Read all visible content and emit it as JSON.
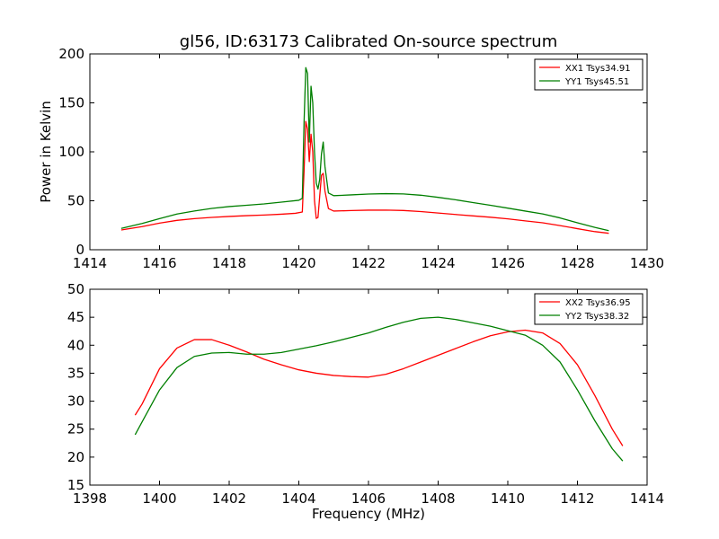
{
  "figure": {
    "title": "gl56, ID:63173 Calibrated On-source spectrum",
    "colors": {
      "xx": "#ff0000",
      "yy": "#007f00"
    }
  },
  "chart_data": [
    {
      "type": "line",
      "title": "gl56, ID:63173 Calibrated On-source spectrum",
      "xlabel": "",
      "ylabel": "Power in Kelvin",
      "xlim": [
        1414,
        1430
      ],
      "ylim": [
        0,
        200
      ],
      "xticks": [
        1414,
        1416,
        1418,
        1420,
        1422,
        1424,
        1426,
        1428,
        1430
      ],
      "yticks": [
        0,
        50,
        100,
        150,
        200
      ],
      "legend_position": "top-right",
      "grid": false,
      "series": [
        {
          "name": "XX1 Tsys34.91",
          "color": "#ff0000",
          "points": [
            [
              1414.9,
              20.2
            ],
            [
              1415.5,
              23.6
            ],
            [
              1416.0,
              27.2
            ],
            [
              1416.5,
              30.0
            ],
            [
              1417.0,
              31.8
            ],
            [
              1417.5,
              33.0
            ],
            [
              1418.0,
              34.0
            ],
            [
              1418.5,
              34.8
            ],
            [
              1419.0,
              35.4
            ],
            [
              1419.5,
              36.3
            ],
            [
              1419.9,
              37.2
            ],
            [
              1420.1,
              38.5
            ],
            [
              1420.15,
              80
            ],
            [
              1420.2,
              131
            ],
            [
              1420.25,
              123
            ],
            [
              1420.3,
              90
            ],
            [
              1420.35,
              118
            ],
            [
              1420.4,
              100
            ],
            [
              1420.45,
              50
            ],
            [
              1420.5,
              32
            ],
            [
              1420.55,
              33
            ],
            [
              1420.6,
              55
            ],
            [
              1420.65,
              76
            ],
            [
              1420.7,
              78
            ],
            [
              1420.75,
              60
            ],
            [
              1420.85,
              42
            ],
            [
              1421.0,
              39.5
            ],
            [
              1421.5,
              40.0
            ],
            [
              1422.0,
              40.4
            ],
            [
              1422.5,
              40.5
            ],
            [
              1423.0,
              40.1
            ],
            [
              1423.5,
              39.0
            ],
            [
              1424.0,
              37.5
            ],
            [
              1424.5,
              36.0
            ],
            [
              1425.0,
              34.6
            ],
            [
              1425.5,
              33.2
            ],
            [
              1426.0,
              31.5
            ],
            [
              1426.5,
              29.5
            ],
            [
              1427.0,
              27.5
            ],
            [
              1427.5,
              24.7
            ],
            [
              1428.0,
              21.5
            ],
            [
              1428.5,
              18.5
            ],
            [
              1428.9,
              16.8
            ]
          ]
        },
        {
          "name": "YY1 Tsys45.51",
          "color": "#007f00",
          "points": [
            [
              1414.9,
              21.8
            ],
            [
              1415.5,
              26.8
            ],
            [
              1416.0,
              31.8
            ],
            [
              1416.5,
              36.5
            ],
            [
              1417.0,
              39.6
            ],
            [
              1417.5,
              42.2
            ],
            [
              1418.0,
              44.1
            ],
            [
              1418.5,
              45.4
            ],
            [
              1419.0,
              46.8
            ],
            [
              1419.5,
              48.6
            ],
            [
              1420.0,
              50.5
            ],
            [
              1420.1,
              52.5
            ],
            [
              1420.15,
              130
            ],
            [
              1420.2,
              186
            ],
            [
              1420.25,
              180
            ],
            [
              1420.3,
              110
            ],
            [
              1420.35,
              167
            ],
            [
              1420.4,
              150
            ],
            [
              1420.45,
              100
            ],
            [
              1420.5,
              68
            ],
            [
              1420.55,
              62
            ],
            [
              1420.6,
              72
            ],
            [
              1420.65,
              98
            ],
            [
              1420.7,
              110
            ],
            [
              1420.75,
              85
            ],
            [
              1420.85,
              58
            ],
            [
              1421.0,
              55.2
            ],
            [
              1421.5,
              56.0
            ],
            [
              1422.0,
              56.9
            ],
            [
              1422.5,
              57.3
            ],
            [
              1423.0,
              57.0
            ],
            [
              1423.5,
              55.7
            ],
            [
              1424.0,
              53.5
            ],
            [
              1424.5,
              51.0
            ],
            [
              1425.0,
              48.2
            ],
            [
              1425.5,
              45.4
            ],
            [
              1426.0,
              42.5
            ],
            [
              1426.5,
              39.5
            ],
            [
              1427.0,
              36.6
            ],
            [
              1427.5,
              32.5
            ],
            [
              1428.0,
              27.5
            ],
            [
              1428.5,
              22.8
            ],
            [
              1428.9,
              19.5
            ]
          ]
        }
      ]
    },
    {
      "type": "line",
      "title": "",
      "xlabel": "Frequency (MHz)",
      "ylabel": "",
      "xlim": [
        1398,
        1414
      ],
      "ylim": [
        15,
        50
      ],
      "xticks": [
        1398,
        1400,
        1402,
        1404,
        1406,
        1408,
        1410,
        1412,
        1414
      ],
      "yticks": [
        15,
        20,
        25,
        30,
        35,
        40,
        45,
        50
      ],
      "legend_position": "top-right",
      "grid": false,
      "series": [
        {
          "name": "XX2 Tsys36.95",
          "color": "#ff0000",
          "points": [
            [
              1399.3,
              27.5
            ],
            [
              1399.5,
              29.5
            ],
            [
              1400.0,
              35.8
            ],
            [
              1400.5,
              39.5
            ],
            [
              1401.0,
              41.0
            ],
            [
              1401.5,
              41.0
            ],
            [
              1402.0,
              40.0
            ],
            [
              1402.5,
              38.8
            ],
            [
              1403.0,
              37.5
            ],
            [
              1403.5,
              36.5
            ],
            [
              1404.0,
              35.6
            ],
            [
              1404.5,
              35.0
            ],
            [
              1405.0,
              34.6
            ],
            [
              1405.5,
              34.4
            ],
            [
              1406.0,
              34.3
            ],
            [
              1406.5,
              34.8
            ],
            [
              1407.0,
              35.8
            ],
            [
              1407.5,
              37.0
            ],
            [
              1408.0,
              38.2
            ],
            [
              1408.5,
              39.4
            ],
            [
              1409.0,
              40.6
            ],
            [
              1409.5,
              41.7
            ],
            [
              1410.0,
              42.4
            ],
            [
              1410.5,
              42.7
            ],
            [
              1411.0,
              42.2
            ],
            [
              1411.5,
              40.3
            ],
            [
              1412.0,
              36.5
            ],
            [
              1412.5,
              31.0
            ],
            [
              1413.0,
              25.0
            ],
            [
              1413.3,
              22.0
            ]
          ]
        },
        {
          "name": "YY2 Tsys38.32",
          "color": "#007f00",
          "points": [
            [
              1399.3,
              24.0
            ],
            [
              1399.5,
              26.3
            ],
            [
              1400.0,
              32.0
            ],
            [
              1400.5,
              36.0
            ],
            [
              1401.0,
              38.0
            ],
            [
              1401.5,
              38.6
            ],
            [
              1402.0,
              38.7
            ],
            [
              1402.5,
              38.4
            ],
            [
              1403.0,
              38.4
            ],
            [
              1403.5,
              38.7
            ],
            [
              1404.0,
              39.3
            ],
            [
              1404.5,
              39.9
            ],
            [
              1405.0,
              40.6
            ],
            [
              1405.5,
              41.4
            ],
            [
              1406.0,
              42.2
            ],
            [
              1406.5,
              43.2
            ],
            [
              1407.0,
              44.1
            ],
            [
              1407.5,
              44.8
            ],
            [
              1408.0,
              45.0
            ],
            [
              1408.5,
              44.6
            ],
            [
              1409.0,
              44.0
            ],
            [
              1409.5,
              43.4
            ],
            [
              1410.0,
              42.6
            ],
            [
              1410.5,
              41.8
            ],
            [
              1411.0,
              40.0
            ],
            [
              1411.5,
              37.0
            ],
            [
              1412.0,
              32.0
            ],
            [
              1412.5,
              26.5
            ],
            [
              1413.0,
              21.5
            ],
            [
              1413.3,
              19.3
            ]
          ]
        }
      ]
    }
  ]
}
